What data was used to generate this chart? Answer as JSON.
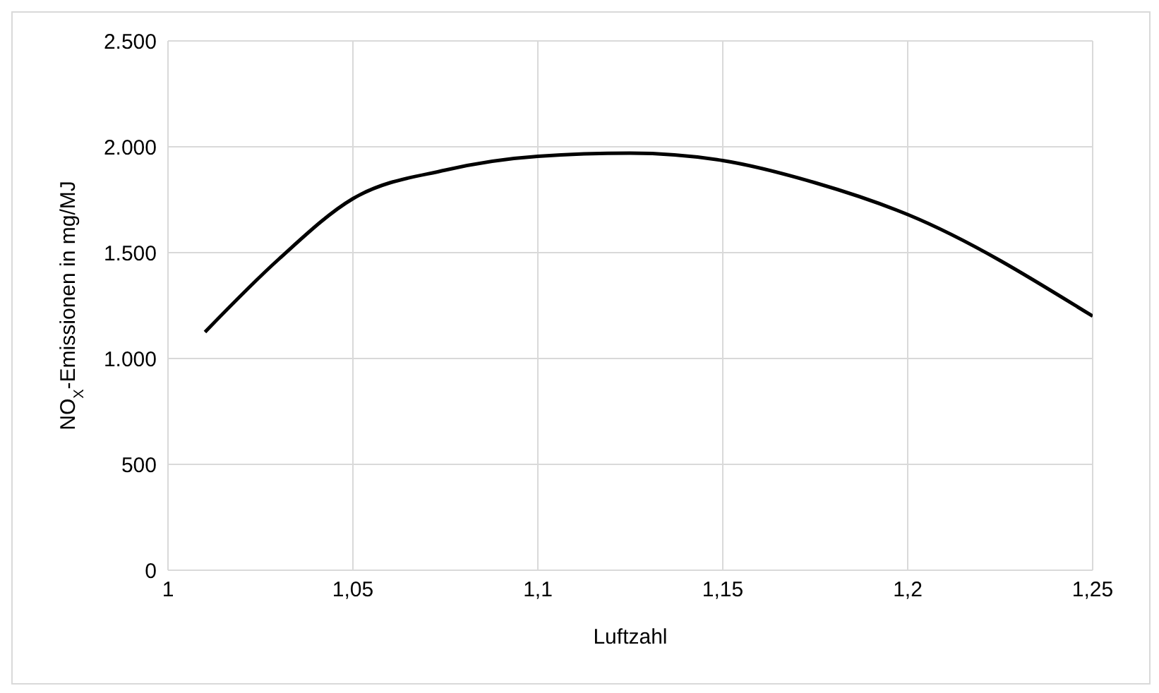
{
  "chart_data": {
    "type": "line",
    "xlabel": "Luftzahl",
    "ylabel": "NO$_{X}$-Emissionen in mg/MJ",
    "x": [
      1.01,
      1.03,
      1.05,
      1.075,
      1.1,
      1.125,
      1.15,
      1.175,
      1.2,
      1.25
    ],
    "series": [
      {
        "color": "#000000",
        "values": [
          1125,
          1470,
          1755,
          1890,
          1955,
          1970,
          1935,
          1830,
          1680,
          1200
        ]
      }
    ],
    "xlim": [
      1,
      1.25
    ],
    "xticks": [
      {
        "value": 1,
        "label": "1"
      },
      {
        "value": 1.05,
        "label": "1,05"
      },
      {
        "value": 1.1,
        "label": "1,1"
      },
      {
        "value": 1.15,
        "label": "1,15"
      },
      {
        "value": 1.2,
        "label": "1,2"
      },
      {
        "value": 1.25,
        "label": "1,25"
      }
    ],
    "ylim": [
      0,
      2500
    ],
    "yticks": [
      0,
      500,
      {
        "value": 1000,
        "label": "1.000"
      },
      {
        "value": 1500,
        "label": "1.500"
      },
      {
        "value": 2000,
        "label": "2.000"
      },
      {
        "value": 2500,
        "label": "2.500"
      }
    ],
    "grid": true,
    "marker": "none",
    "line_style": "solid"
  }
}
